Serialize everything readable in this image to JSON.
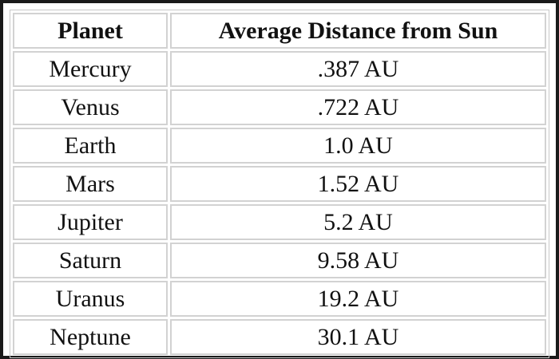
{
  "table": {
    "headers": [
      "Planet",
      "Average Distance from Sun"
    ],
    "rows": [
      [
        "Mercury",
        ".387 AU"
      ],
      [
        "Venus",
        ".722 AU"
      ],
      [
        "Earth",
        "1.0 AU"
      ],
      [
        "Mars",
        "1.52 AU"
      ],
      [
        "Jupiter",
        "5.2 AU"
      ],
      [
        "Saturn",
        "9.58 AU"
      ],
      [
        "Uranus",
        "19.2 AU"
      ],
      [
        "Neptune",
        "30.1 AU"
      ]
    ]
  }
}
